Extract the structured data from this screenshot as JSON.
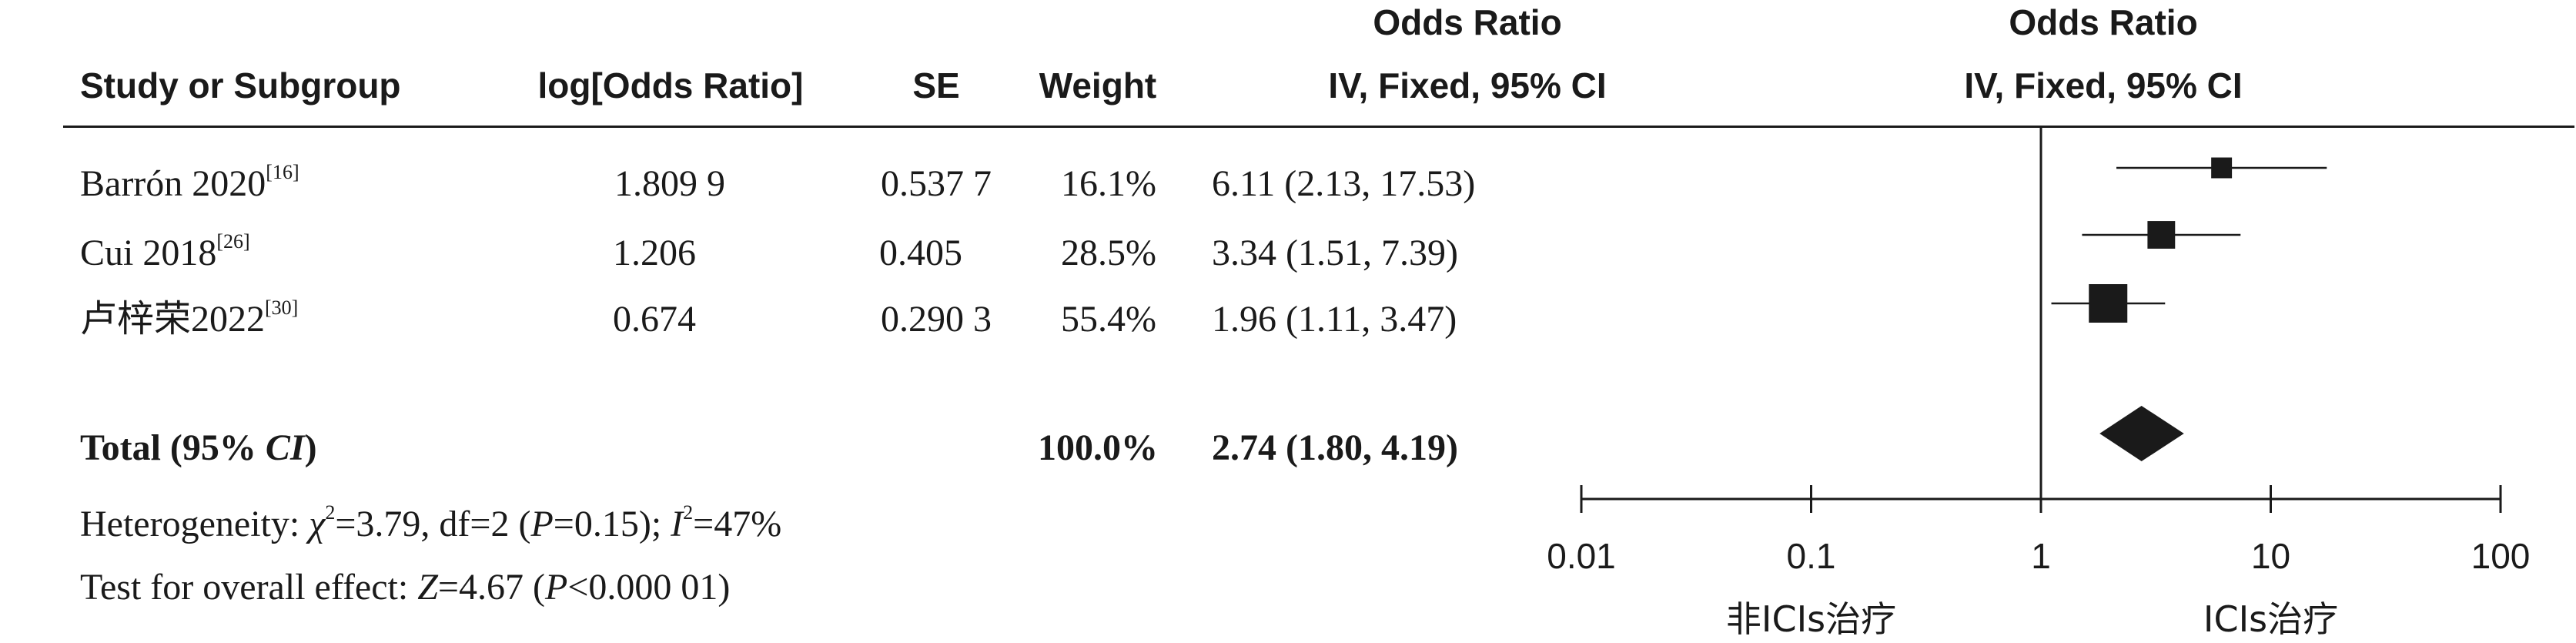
{
  "header": {
    "study": "Study or Subgroup",
    "log_or": "log[Odds Ratio]",
    "se": "SE",
    "weight": "Weight",
    "or_title": "Odds Ratio",
    "or_sub": "IV, Fixed, 95% CI",
    "plot_title": "Odds Ratio",
    "plot_sub": "IV, Fixed, 95% CI"
  },
  "studies": [
    {
      "name": "Barrón 2020",
      "ref": "[16]",
      "log_or": "1.809 9",
      "se": "0.537 7",
      "weight": "16.1%",
      "ci": "6.11 (2.13, 17.53)"
    },
    {
      "name": "Cui 2018",
      "ref": "[26]",
      "log_or": "1.206",
      "se": "0.405",
      "weight": "28.5%",
      "ci": "3.34 (1.51, 7.39)"
    },
    {
      "name": "卢梓荣2022",
      "ref": "[30]",
      "log_or": "0.674",
      "se": "0.290 3",
      "weight": "55.4%",
      "ci": "1.96 (1.11, 3.47)"
    }
  ],
  "total": {
    "label_a": "Total (95% ",
    "label_ci": "CI",
    "label_b": ")",
    "weight": "100.0%",
    "ci": "2.74 (1.80, 4.19)"
  },
  "heterogeneity": {
    "prefix": "Heterogeneity: ",
    "chi": "χ",
    "chi_sup": "2",
    "mid": "=3.79, df=2 (",
    "p": "P",
    "p_val": "=0.15); ",
    "i": "I",
    "i_sup": "2",
    "i_val": "=47%"
  },
  "overall": {
    "prefix": "Test for overall effect: ",
    "z": "Z",
    "z_val": "=4.67 (",
    "p": "P",
    "p_val": "<0.000 01)"
  },
  "chart_data": {
    "type": "forest",
    "title": "Odds Ratio",
    "subtitle": "IV, Fixed, 95% CI",
    "xscale": "log",
    "xlim": [
      0.01,
      100
    ],
    "xticks": [
      0.01,
      0.1,
      1,
      10,
      100
    ],
    "xtick_labels": [
      "0.01",
      "0.1",
      "1",
      "10",
      "100"
    ],
    "reference_line": 1,
    "favours_left": "非ICIs治疗",
    "favours_right": "ICIs治疗",
    "studies": [
      {
        "name": "Barrón 2020",
        "or": 6.11,
        "lo": 2.13,
        "hi": 17.53,
        "weight": 16.1
      },
      {
        "name": "Cui 2018",
        "or": 3.34,
        "lo": 1.51,
        "hi": 7.39,
        "weight": 28.5
      },
      {
        "name": "卢梓荣2022",
        "or": 1.96,
        "lo": 1.11,
        "hi": 3.47,
        "weight": 55.4
      }
    ],
    "pooled": {
      "or": 2.74,
      "lo": 1.8,
      "hi": 4.19
    },
    "colors": {
      "ink": "#1a1a1a"
    }
  }
}
